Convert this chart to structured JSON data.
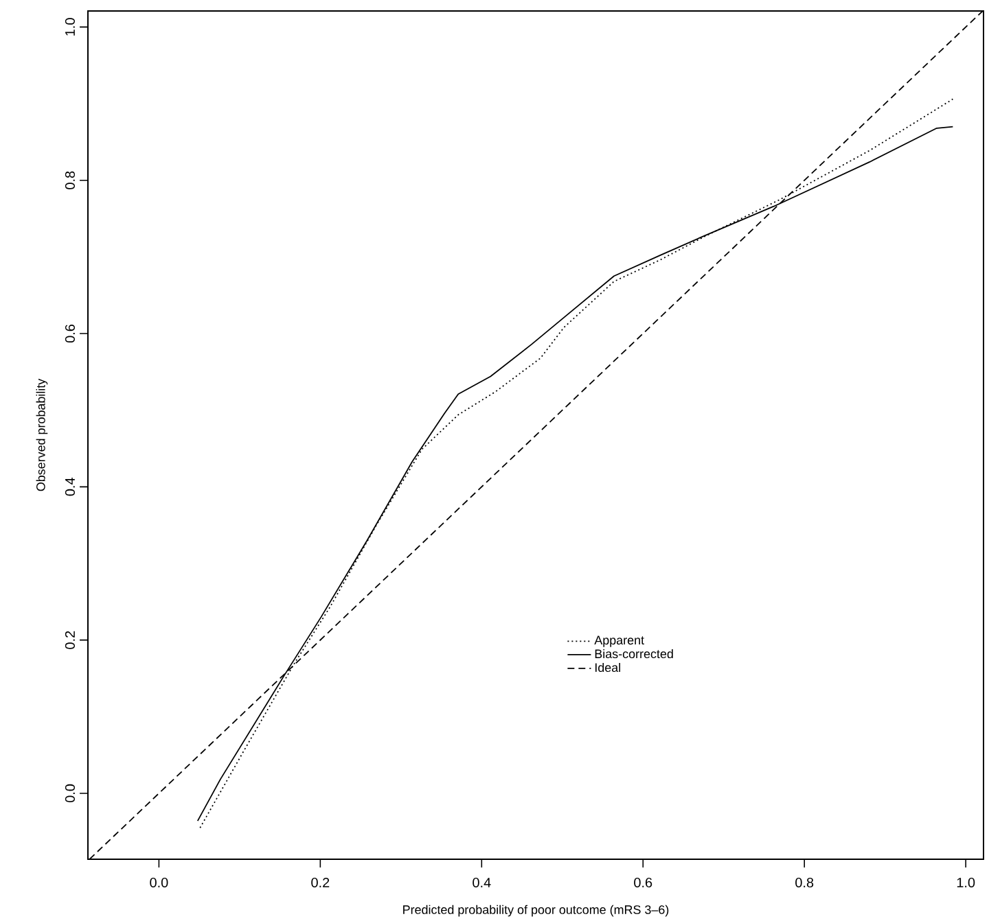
{
  "chart_data": {
    "type": "line",
    "xlabel": "Predicted probability of poor outcome (mRS 3–6)",
    "ylabel": "Observed probability",
    "xlim": [
      -0.088,
      1.022
    ],
    "ylim": [
      -0.086,
      1.021
    ],
    "xticks": [
      {
        "value": 0,
        "label": "0.0"
      },
      0.2,
      0.4,
      0.6,
      0.8,
      {
        "value": 1,
        "label": "1.0"
      }
    ],
    "yticks": [
      {
        "value": 0,
        "label": "0.0"
      },
      0.2,
      0.4,
      0.6,
      0.8,
      {
        "value": 1,
        "label": "1.0"
      }
    ],
    "grid": false,
    "legend": "bottom right",
    "marker": "none",
    "series": [
      {
        "name": "Apparent",
        "color": "#000000",
        "line_style": "dotted",
        "x": [
          0.051,
          0.105,
          0.167,
          0.212,
          0.269,
          0.326,
          0.371,
          0.417,
          0.473,
          0.502,
          0.564,
          0.621,
          0.677,
          0.768,
          0.881,
          0.984
        ],
        "values": [
          -0.045,
          0.055,
          0.168,
          0.243,
          0.349,
          0.449,
          0.494,
          0.524,
          0.568,
          0.608,
          0.668,
          0.696,
          0.727,
          0.774,
          0.839,
          0.906
        ]
      },
      {
        "name": "Bias-corrected",
        "color": "#000000",
        "line_style": "solid",
        "x": [
          0.048,
          0.076,
          0.156,
          0.201,
          0.258,
          0.314,
          0.354,
          0.371,
          0.411,
          0.462,
          0.502,
          0.564,
          0.621,
          0.677,
          0.762,
          0.881,
          0.964,
          0.984
        ],
        "values": [
          -0.036,
          0.018,
          0.155,
          0.23,
          0.33,
          0.433,
          0.496,
          0.521,
          0.544,
          0.586,
          0.621,
          0.675,
          0.702,
          0.728,
          0.766,
          0.824,
          0.868,
          0.87
        ]
      },
      {
        "name": "Ideal",
        "color": "#000000",
        "line_style": "dashed",
        "x": [
          -0.086,
          1.021
        ],
        "values": [
          -0.086,
          1.021
        ]
      }
    ]
  }
}
